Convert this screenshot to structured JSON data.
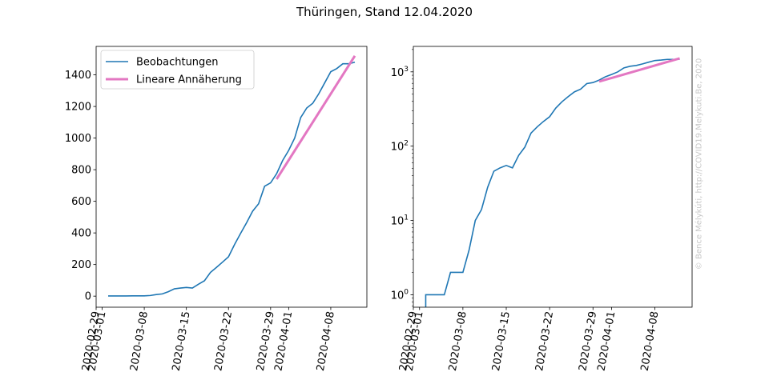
{
  "chart_data": {
    "title": "Thüringen, Stand 12.04.2020",
    "watermark": "© Bence Mélykúti, http://COVID19.Melykuti.Be, 2020",
    "x_start_date": "2020-02-29",
    "dates": [
      "2020-03-02",
      "2020-03-03",
      "2020-03-04",
      "2020-03-05",
      "2020-03-06",
      "2020-03-07",
      "2020-03-08",
      "2020-03-09",
      "2020-03-10",
      "2020-03-11",
      "2020-03-12",
      "2020-03-13",
      "2020-03-14",
      "2020-03-15",
      "2020-03-16",
      "2020-03-17",
      "2020-03-18",
      "2020-03-19",
      "2020-03-20",
      "2020-03-21",
      "2020-03-22",
      "2020-03-23",
      "2020-03-24",
      "2020-03-25",
      "2020-03-26",
      "2020-03-27",
      "2020-03-28",
      "2020-03-29",
      "2020-03-30",
      "2020-03-31",
      "2020-04-01",
      "2020-04-02",
      "2020-04-03",
      "2020-04-04",
      "2020-04-05",
      "2020-04-06",
      "2020-04-07",
      "2020-04-08",
      "2020-04-09",
      "2020-04-10",
      "2020-04-11",
      "2020-04-12"
    ],
    "observations": [
      1,
      1,
      1,
      1,
      2,
      2,
      2,
      4,
      10,
      14,
      28,
      46,
      51,
      55,
      51,
      75,
      97,
      150,
      182,
      215,
      249,
      326,
      396,
      464,
      537,
      584,
      695,
      717,
      775,
      858,
      922,
      1000,
      1130,
      1190,
      1220,
      1280,
      1350,
      1420,
      1440,
      1470,
      1470,
      1480
    ],
    "fit_dates": [
      "2020-03-30",
      "2020-04-12"
    ],
    "fit_values": [
      740,
      1520
    ],
    "xticks": [
      "2020-02-29",
      "2020-03-01",
      "2020-03-08",
      "2020-03-15",
      "2020-03-22",
      "2020-03-29",
      "2020-04-01",
      "2020-04-08"
    ],
    "left_axis": {
      "scale": "linear",
      "ylim": [
        -70,
        1580
      ],
      "yticks": [
        0,
        200,
        400,
        600,
        800,
        1000,
        1200,
        1400
      ],
      "legend": {
        "position": "top-left",
        "entries": [
          "Beobachtungen",
          "Lineare Annäherung"
        ]
      }
    },
    "right_axis": {
      "scale": "log",
      "ylim": [
        0.68,
        2200
      ],
      "yticks": [
        {
          "value": 1,
          "base": "10",
          "exp": "0"
        },
        {
          "value": 10,
          "base": "10",
          "exp": "1"
        },
        {
          "value": 100,
          "base": "10",
          "exp": "2"
        },
        {
          "value": 1000,
          "base": "10",
          "exp": "3"
        }
      ]
    },
    "colors": {
      "observations": "#1f77b4",
      "fit": "#e377c2"
    }
  }
}
